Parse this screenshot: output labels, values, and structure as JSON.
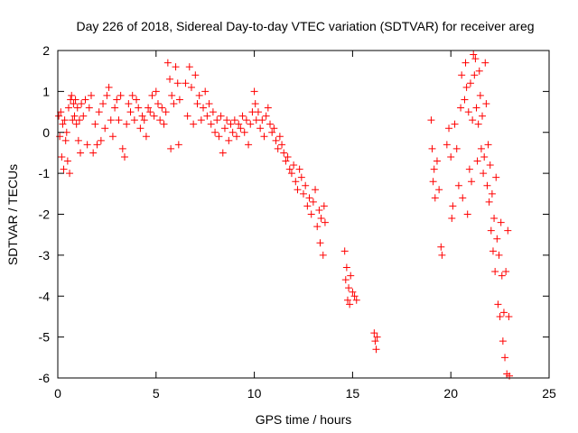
{
  "chart_data": {
    "type": "scatter",
    "title": "Day 226 of 2018, Sidereal Day-to-day VTEC variation (SDTVAR) for receiver areg",
    "xlabel": "GPS time / hours",
    "ylabel": "SDTVAR / TECUs",
    "xlim": [
      0,
      25
    ],
    "ylim": [
      -6,
      2
    ],
    "xticks": [
      0,
      5,
      10,
      15,
      20,
      25
    ],
    "yticks": [
      -6,
      -5,
      -4,
      -3,
      -2,
      -1,
      0,
      1,
      2
    ],
    "grid": false,
    "marker": "+",
    "color": "#ff0000",
    "series": [
      {
        "name": "SDTVAR",
        "points": [
          [
            0.05,
            0.4
          ],
          [
            0.1,
            -0.1
          ],
          [
            0.15,
            0.5
          ],
          [
            0.2,
            -0.6
          ],
          [
            0.25,
            0.2
          ],
          [
            0.3,
            -0.9
          ],
          [
            0.35,
            0.3
          ],
          [
            0.4,
            -0.2
          ],
          [
            0.45,
            0.0
          ],
          [
            0.5,
            -0.7
          ],
          [
            0.55,
            0.6
          ],
          [
            0.6,
            -1.0
          ],
          [
            0.65,
            0.8
          ],
          [
            0.7,
            0.9
          ],
          [
            0.75,
            0.3
          ],
          [
            0.8,
            0.7
          ],
          [
            0.85,
            0.4
          ],
          [
            0.9,
            0.8
          ],
          [
            0.95,
            0.2
          ],
          [
            1.0,
            0.6
          ],
          [
            1.05,
            -0.2
          ],
          [
            1.1,
            0.3
          ],
          [
            1.15,
            -0.5
          ],
          [
            1.2,
            0.7
          ],
          [
            1.3,
            0.4
          ],
          [
            1.4,
            0.8
          ],
          [
            1.5,
            -0.3
          ],
          [
            1.6,
            0.6
          ],
          [
            1.7,
            0.9
          ],
          [
            1.8,
            -0.5
          ],
          [
            1.9,
            0.2
          ],
          [
            2.0,
            -0.3
          ],
          [
            2.1,
            0.5
          ],
          [
            2.2,
            -0.2
          ],
          [
            2.3,
            0.7
          ],
          [
            2.4,
            0.1
          ],
          [
            2.5,
            0.9
          ],
          [
            2.6,
            1.1
          ],
          [
            2.7,
            0.3
          ],
          [
            2.8,
            -0.1
          ],
          [
            2.9,
            0.6
          ],
          [
            3.0,
            0.8
          ],
          [
            3.1,
            0.3
          ],
          [
            3.2,
            0.9
          ],
          [
            3.3,
            -0.4
          ],
          [
            3.4,
            -0.6
          ],
          [
            3.5,
            0.2
          ],
          [
            3.6,
            0.7
          ],
          [
            3.7,
            0.5
          ],
          [
            3.8,
            0.9
          ],
          [
            3.9,
            0.3
          ],
          [
            4.0,
            0.8
          ],
          [
            4.1,
            0.6
          ],
          [
            4.2,
            0.1
          ],
          [
            4.3,
            0.4
          ],
          [
            4.4,
            0.3
          ],
          [
            4.5,
            -0.1
          ],
          [
            4.6,
            0.6
          ],
          [
            4.7,
            0.5
          ],
          [
            4.8,
            0.9
          ],
          [
            4.9,
            0.4
          ],
          [
            5.0,
            1.0
          ],
          [
            5.1,
            0.7
          ],
          [
            5.2,
            0.3
          ],
          [
            5.3,
            0.6
          ],
          [
            5.4,
            0.2
          ],
          [
            5.5,
            0.5
          ],
          [
            5.6,
            1.7
          ],
          [
            5.7,
            1.3
          ],
          [
            5.75,
            -0.4
          ],
          [
            5.8,
            0.9
          ],
          [
            5.9,
            0.7
          ],
          [
            6.0,
            1.6
          ],
          [
            6.1,
            1.2
          ],
          [
            6.15,
            -0.3
          ],
          [
            6.2,
            0.8
          ],
          [
            6.5,
            1.2
          ],
          [
            6.6,
            0.4
          ],
          [
            6.7,
            1.6
          ],
          [
            6.8,
            1.1
          ],
          [
            6.9,
            0.2
          ],
          [
            7.0,
            1.4
          ],
          [
            7.1,
            0.7
          ],
          [
            7.2,
            0.9
          ],
          [
            7.3,
            0.3
          ],
          [
            7.4,
            0.6
          ],
          [
            7.5,
            1.0
          ],
          [
            7.6,
            0.4
          ],
          [
            7.7,
            0.7
          ],
          [
            7.8,
            0.2
          ],
          [
            7.9,
            0.5
          ],
          [
            8.0,
            0.0
          ],
          [
            8.1,
            0.3
          ],
          [
            8.2,
            -0.1
          ],
          [
            8.3,
            0.4
          ],
          [
            8.4,
            -0.5
          ],
          [
            8.5,
            0.1
          ],
          [
            8.6,
            0.3
          ],
          [
            8.7,
            -0.2
          ],
          [
            8.8,
            0.2
          ],
          [
            8.9,
            0.0
          ],
          [
            9.0,
            0.3
          ],
          [
            9.1,
            -0.1
          ],
          [
            9.2,
            0.2
          ],
          [
            9.3,
            0.1
          ],
          [
            9.4,
            0.4
          ],
          [
            9.5,
            0.0
          ],
          [
            9.6,
            0.3
          ],
          [
            9.7,
            -0.3
          ],
          [
            9.8,
            0.2
          ],
          [
            9.9,
            0.5
          ],
          [
            10.0,
            1.0
          ],
          [
            10.05,
            0.7
          ],
          [
            10.1,
            0.3
          ],
          [
            10.2,
            0.5
          ],
          [
            10.3,
            0.1
          ],
          [
            10.4,
            0.3
          ],
          [
            10.5,
            -0.1
          ],
          [
            10.6,
            0.4
          ],
          [
            10.7,
            0.6
          ],
          [
            10.8,
            0.2
          ],
          [
            10.9,
            0.0
          ],
          [
            11.0,
            0.1
          ],
          [
            11.1,
            -0.2
          ],
          [
            11.2,
            -0.4
          ],
          [
            11.3,
            -0.1
          ],
          [
            11.4,
            -0.3
          ],
          [
            11.5,
            -0.5
          ],
          [
            11.6,
            -0.7
          ],
          [
            11.7,
            -0.6
          ],
          [
            11.8,
            -0.9
          ],
          [
            11.9,
            -1.0
          ],
          [
            12.0,
            -0.8
          ],
          [
            12.1,
            -1.2
          ],
          [
            12.2,
            -1.4
          ],
          [
            12.3,
            -0.9
          ],
          [
            12.4,
            -1.1
          ],
          [
            12.5,
            -1.5
          ],
          [
            12.6,
            -1.3
          ],
          [
            12.7,
            -1.8
          ],
          [
            12.8,
            -1.6
          ],
          [
            12.9,
            -2.0
          ],
          [
            13.0,
            -1.7
          ],
          [
            13.1,
            -1.4
          ],
          [
            13.2,
            -2.3
          ],
          [
            13.3,
            -1.9
          ],
          [
            13.35,
            -2.7
          ],
          [
            13.4,
            -2.1
          ],
          [
            13.5,
            -3.0
          ],
          [
            13.55,
            -1.8
          ],
          [
            13.6,
            -2.2
          ],
          [
            14.6,
            -2.9
          ],
          [
            14.65,
            -3.6
          ],
          [
            14.7,
            -3.3
          ],
          [
            14.75,
            -4.1
          ],
          [
            14.8,
            -3.8
          ],
          [
            14.85,
            -4.2
          ],
          [
            14.9,
            -3.5
          ],
          [
            15.0,
            -3.9
          ],
          [
            15.1,
            -4.0
          ],
          [
            15.2,
            -4.1
          ],
          [
            16.1,
            -4.9
          ],
          [
            16.15,
            -5.1
          ],
          [
            16.2,
            -5.3
          ],
          [
            16.25,
            -5.0
          ],
          [
            19.0,
            0.3
          ],
          [
            19.05,
            -0.4
          ],
          [
            19.1,
            -1.2
          ],
          [
            19.15,
            -0.9
          ],
          [
            19.2,
            -1.6
          ],
          [
            19.3,
            -0.7
          ],
          [
            19.4,
            -1.4
          ],
          [
            19.5,
            -2.8
          ],
          [
            19.55,
            -3.0
          ],
          [
            19.8,
            -0.3
          ],
          [
            19.9,
            0.1
          ],
          [
            20.0,
            -0.6
          ],
          [
            20.05,
            -2.1
          ],
          [
            20.1,
            -1.8
          ],
          [
            20.2,
            0.2
          ],
          [
            20.3,
            -0.4
          ],
          [
            20.4,
            -1.3
          ],
          [
            20.5,
            0.6
          ],
          [
            20.55,
            1.4
          ],
          [
            20.6,
            -1.6
          ],
          [
            20.7,
            0.8
          ],
          [
            20.75,
            1.7
          ],
          [
            20.8,
            1.1
          ],
          [
            20.85,
            -2.0
          ],
          [
            20.9,
            0.5
          ],
          [
            20.95,
            -0.9
          ],
          [
            21.0,
            1.2
          ],
          [
            21.05,
            -1.2
          ],
          [
            21.1,
            0.3
          ],
          [
            21.15,
            1.9
          ],
          [
            21.2,
            1.4
          ],
          [
            21.25,
            1.8
          ],
          [
            21.3,
            0.6
          ],
          [
            21.35,
            -0.7
          ],
          [
            21.4,
            0.2
          ],
          [
            21.45,
            1.5
          ],
          [
            21.5,
            0.9
          ],
          [
            21.55,
            -0.4
          ],
          [
            21.6,
            0.4
          ],
          [
            21.65,
            -1.0
          ],
          [
            21.7,
            -0.6
          ],
          [
            21.75,
            1.7
          ],
          [
            21.8,
            0.7
          ],
          [
            21.85,
            -1.3
          ],
          [
            21.9,
            -0.3
          ],
          [
            21.95,
            -1.7
          ],
          [
            22.0,
            -0.8
          ],
          [
            22.05,
            -2.4
          ],
          [
            22.1,
            -1.5
          ],
          [
            22.15,
            -2.9
          ],
          [
            22.2,
            -2.1
          ],
          [
            22.25,
            -3.4
          ],
          [
            22.3,
            -1.1
          ],
          [
            22.35,
            -2.6
          ],
          [
            22.4,
            -4.2
          ],
          [
            22.45,
            -3.0
          ],
          [
            22.5,
            -4.5
          ],
          [
            22.55,
            -2.2
          ],
          [
            22.6,
            -3.5
          ],
          [
            22.65,
            -5.1
          ],
          [
            22.7,
            -4.4
          ],
          [
            22.75,
            -5.5
          ],
          [
            22.8,
            -3.4
          ],
          [
            22.85,
            -5.9
          ],
          [
            22.9,
            -2.4
          ],
          [
            22.95,
            -4.5
          ],
          [
            22.98,
            -5.95
          ]
        ]
      }
    ]
  }
}
